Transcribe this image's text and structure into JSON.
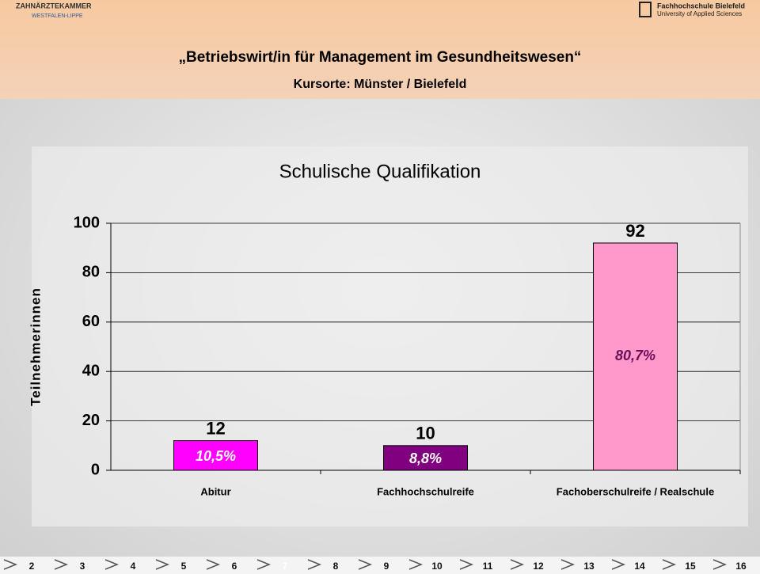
{
  "header": {
    "logo_left": "ZAHNÄRZTEKAMMER",
    "logo_left_sub": "WESTFALEN-LIPPE",
    "logo_right": "Fachhochschule Bielefeld",
    "logo_right_sub": "University of Applied Sciences",
    "title": "„Betriebswirt/in für Management im Gesundheitswesen“",
    "subtitle": "Kursorte: Münster / Bielefeld"
  },
  "chart_data": {
    "type": "bar",
    "title": "Schulische Qualifikation",
    "y_label": "Teilnehmerinnen",
    "categories": [
      "Abitur",
      "Fachhochschulreife",
      "Fachoberschulreife / Realschule"
    ],
    "values": [
      12,
      10,
      92
    ],
    "colors": [
      "#ff00ff",
      "#800080",
      "#ff99cc"
    ],
    "percent_labels": [
      "10,5%",
      "8,8%",
      "80,7%"
    ],
    "percent_label_colors": [
      "#ffffff",
      "#ffffff",
      "#6a1058"
    ],
    "ylim": [
      0,
      100
    ],
    "yticks": [
      0,
      20,
      40,
      60,
      80,
      100
    ],
    "grid": true
  },
  "nav": {
    "pages": [
      "2",
      "3",
      "4",
      "5",
      "6",
      "7",
      "8",
      "9",
      "10",
      "11",
      "12",
      "13",
      "14",
      "15",
      "16"
    ]
  }
}
